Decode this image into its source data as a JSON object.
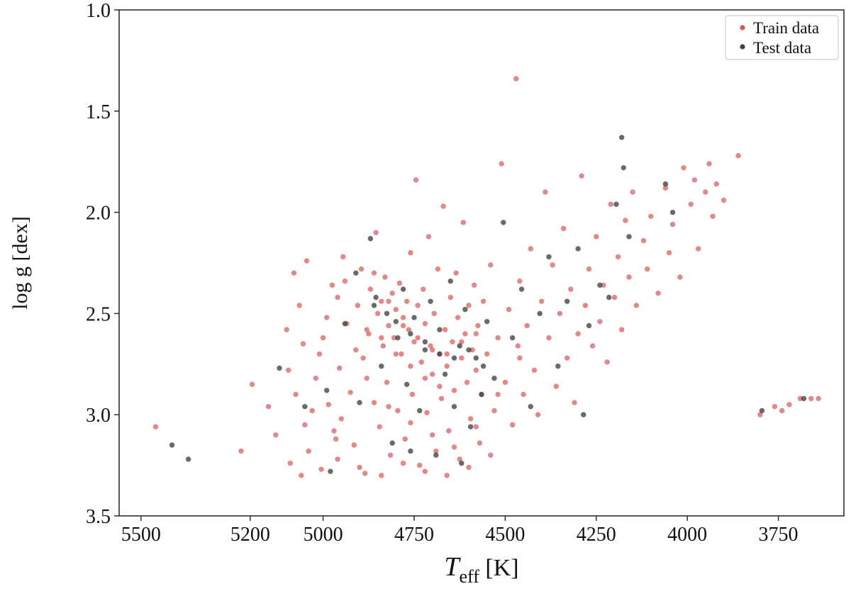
{
  "chart_data": {
    "type": "scatter",
    "title": "",
    "xlabel": {
      "main": "T",
      "sub": "eff",
      "unit": " [K]"
    },
    "ylabel": "log g  [dex]",
    "xlim": [
      5560,
      3570
    ],
    "ylim": [
      1.0,
      3.5
    ],
    "x_inverted": true,
    "y_inverted": true,
    "x_ticks": [
      5500,
      5200,
      5000,
      4750,
      4500,
      4250,
      4000,
      3750
    ],
    "x_tick_labels": [
      "5500",
      "5200",
      "5000",
      "4750",
      "4500",
      "4250",
      "4000",
      "3750"
    ],
    "y_ticks": [
      1.0,
      1.5,
      2.0,
      2.5,
      3.0,
      3.5
    ],
    "y_tick_labels": [
      "1.0",
      "1.5",
      "2.0",
      "2.5",
      "3.0",
      "3.5"
    ],
    "grid": false,
    "legend": {
      "position": "top-right",
      "entries": [
        {
          "label": "Train data",
          "color": "#d9595a"
        },
        {
          "label": "Test data",
          "color": "#404040"
        }
      ]
    },
    "series": [
      {
        "name": "Train data",
        "color": "#d9595a",
        "points": [
          [
            5460,
            3.06
          ],
          [
            5225,
            3.18
          ],
          [
            5195,
            2.85
          ],
          [
            5150,
            2.96
          ],
          [
            5130,
            3.1
          ],
          [
            5100,
            2.58
          ],
          [
            5095,
            2.78
          ],
          [
            5090,
            3.24
          ],
          [
            5080,
            2.3
          ],
          [
            5075,
            2.9
          ],
          [
            5065,
            2.46
          ],
          [
            5060,
            3.3
          ],
          [
            5055,
            2.65
          ],
          [
            5050,
            3.05
          ],
          [
            5045,
            2.24
          ],
          [
            5040,
            3.18
          ],
          [
            5020,
            2.82
          ],
          [
            5010,
            2.7
          ],
          [
            5005,
            3.27
          ],
          [
            4990,
            2.52
          ],
          [
            4985,
            2.95
          ],
          [
            4975,
            2.36
          ],
          [
            4965,
            3.12
          ],
          [
            4960,
            2.42
          ],
          [
            4955,
            2.77
          ],
          [
            4950,
            3.02
          ],
          [
            4945,
            2.22
          ],
          [
            4935,
            2.55
          ],
          [
            4925,
            2.89
          ],
          [
            4915,
            3.15
          ],
          [
            4905,
            2.46
          ],
          [
            4895,
            2.28
          ],
          [
            4890,
            2.72
          ],
          [
            4885,
            3.29
          ],
          [
            4875,
            2.6
          ],
          [
            4870,
            2.38
          ],
          [
            4860,
            2.94
          ],
          [
            4855,
            2.1
          ],
          [
            4850,
            2.5
          ],
          [
            4845,
            3.06
          ],
          [
            4840,
            2.44
          ],
          [
            4835,
            2.66
          ],
          [
            4830,
            2.32
          ],
          [
            4825,
            2.84
          ],
          [
            4820,
            2.56
          ],
          [
            4815,
            3.2
          ],
          [
            4810,
            2.4
          ],
          [
            4805,
            2.62
          ],
          [
            4800,
            2.48
          ],
          [
            4795,
            2.98
          ],
          [
            4790,
            2.35
          ],
          [
            4785,
            2.7
          ],
          [
            4780,
            2.52
          ],
          [
            4775,
            3.12
          ],
          [
            4770,
            2.44
          ],
          [
            4765,
            2.58
          ],
          [
            4760,
            2.2
          ],
          [
            4755,
            2.9
          ],
          [
            4750,
            2.64
          ],
          [
            4745,
            1.84
          ],
          [
            4740,
            2.46
          ],
          [
            4735,
            3.25
          ],
          [
            4730,
            2.74
          ],
          [
            4725,
            2.38
          ],
          [
            4720,
            2.55
          ],
          [
            4715,
            2.99
          ],
          [
            4710,
            2.12
          ],
          [
            4705,
            2.66
          ],
          [
            4700,
            2.8
          ],
          [
            4695,
            2.5
          ],
          [
            4690,
            3.18
          ],
          [
            4685,
            2.28
          ],
          [
            4680,
            2.7
          ],
          [
            4675,
            2.92
          ],
          [
            4670,
            1.97
          ],
          [
            4665,
            2.58
          ],
          [
            4660,
            2.76
          ],
          [
            4655,
            3.08
          ],
          [
            4650,
            2.42
          ],
          [
            4645,
            2.64
          ],
          [
            4640,
            2.88
          ],
          [
            4635,
            2.3
          ],
          [
            4630,
            2.52
          ],
          [
            4625,
            3.22
          ],
          [
            4620,
            2.72
          ],
          [
            4615,
            2.05
          ],
          [
            4610,
            2.6
          ],
          [
            4605,
            2.84
          ],
          [
            4600,
            2.46
          ],
          [
            4595,
            3.02
          ],
          [
            4590,
            2.68
          ],
          [
            4585,
            2.36
          ],
          [
            4580,
            2.78
          ],
          [
            4575,
            2.56
          ],
          [
            4570,
            3.14
          ],
          [
            4565,
            2.9
          ],
          [
            4560,
            2.44
          ],
          [
            4550,
            2.7
          ],
          [
            4540,
            2.26
          ],
          [
            4530,
            2.98
          ],
          [
            4520,
            2.62
          ],
          [
            4510,
            1.76
          ],
          [
            4500,
            2.84
          ],
          [
            4490,
            2.48
          ],
          [
            4480,
            3.05
          ],
          [
            4470,
            1.34
          ],
          [
            4465,
            2.66
          ],
          [
            4460,
            2.34
          ],
          [
            4450,
            2.9
          ],
          [
            4440,
            2.56
          ],
          [
            4430,
            2.18
          ],
          [
            4420,
            2.78
          ],
          [
            4410,
            3.0
          ],
          [
            4400,
            2.44
          ],
          [
            4390,
            1.9
          ],
          [
            4380,
            2.62
          ],
          [
            4370,
            2.26
          ],
          [
            4360,
            2.86
          ],
          [
            4350,
            2.5
          ],
          [
            4340,
            2.08
          ],
          [
            4330,
            2.72
          ],
          [
            4320,
            2.38
          ],
          [
            4310,
            2.94
          ],
          [
            4300,
            2.6
          ],
          [
            4290,
            1.82
          ],
          [
            4280,
            2.46
          ],
          [
            4270,
            2.28
          ],
          [
            4260,
            2.66
          ],
          [
            4250,
            2.12
          ],
          [
            4240,
            2.54
          ],
          [
            4230,
            2.36
          ],
          [
            4220,
            2.74
          ],
          [
            4210,
            1.96
          ],
          [
            4200,
            2.42
          ],
          [
            4190,
            2.22
          ],
          [
            4180,
            2.58
          ],
          [
            4170,
            2.04
          ],
          [
            4160,
            2.32
          ],
          [
            4150,
            1.9
          ],
          [
            4140,
            2.46
          ],
          [
            4120,
            2.14
          ],
          [
            4110,
            2.28
          ],
          [
            4100,
            2.02
          ],
          [
            4080,
            2.4
          ],
          [
            4060,
            1.88
          ],
          [
            4050,
            2.2
          ],
          [
            4040,
            2.06
          ],
          [
            4020,
            2.32
          ],
          [
            4010,
            1.78
          ],
          [
            3990,
            1.96
          ],
          [
            3980,
            1.84
          ],
          [
            3970,
            2.18
          ],
          [
            3950,
            1.9
          ],
          [
            3940,
            1.76
          ],
          [
            3930,
            2.02
          ],
          [
            3920,
            1.86
          ],
          [
            3900,
            1.94
          ],
          [
            3860,
            1.72
          ],
          [
            3760,
            2.96
          ],
          [
            3740,
            2.98
          ],
          [
            3720,
            2.95
          ],
          [
            3690,
            2.92
          ],
          [
            3660,
            2.92
          ],
          [
            3640,
            2.92
          ],
          [
            3800,
            3.0
          ],
          [
            4860,
            2.3
          ],
          [
            4820,
            2.44
          ],
          [
            4780,
            2.56
          ],
          [
            4740,
            2.62
          ],
          [
            4700,
            2.68
          ],
          [
            4660,
            2.7
          ],
          [
            4620,
            2.64
          ],
          [
            4580,
            2.6
          ],
          [
            4880,
            2.58
          ],
          [
            4840,
            2.62
          ],
          [
            4800,
            2.7
          ],
          [
            4760,
            2.76
          ],
          [
            4720,
            2.82
          ],
          [
            4680,
            2.86
          ],
          [
            4960,
            3.22
          ],
          [
            4900,
            3.26
          ],
          [
            4840,
            3.3
          ],
          [
            4780,
            3.24
          ],
          [
            4720,
            3.28
          ],
          [
            4660,
            3.3
          ],
          [
            4600,
            3.26
          ],
          [
            4540,
            3.2
          ],
          [
            5000,
            2.62
          ],
          [
            4940,
            2.34
          ],
          [
            4880,
            2.82
          ],
          [
            4820,
            2.96
          ],
          [
            4760,
            3.04
          ],
          [
            4700,
            3.1
          ],
          [
            4640,
            3.16
          ],
          [
            4580,
            3.06
          ],
          [
            4520,
            2.9
          ],
          [
            4460,
            2.72
          ],
          [
            5030,
            2.98
          ],
          [
            4970,
            3.08
          ],
          [
            4910,
            2.68
          ]
        ]
      },
      {
        "name": "Test data",
        "color": "#404040",
        "points": [
          [
            5415,
            3.15
          ],
          [
            5370,
            3.22
          ],
          [
            5120,
            2.77
          ],
          [
            5050,
            2.96
          ],
          [
            4990,
            2.88
          ],
          [
            4940,
            2.55
          ],
          [
            4910,
            2.3
          ],
          [
            4870,
            2.13
          ],
          [
            4855,
            2.42
          ],
          [
            4840,
            2.76
          ],
          [
            4825,
            2.5
          ],
          [
            4810,
            3.14
          ],
          [
            4795,
            2.62
          ],
          [
            4780,
            2.38
          ],
          [
            4770,
            2.85
          ],
          [
            4750,
            2.52
          ],
          [
            4735,
            2.98
          ],
          [
            4720,
            2.68
          ],
          [
            4705,
            2.44
          ],
          [
            4690,
            3.2
          ],
          [
            4680,
            2.58
          ],
          [
            4665,
            2.8
          ],
          [
            4650,
            2.34
          ],
          [
            4640,
            2.96
          ],
          [
            4625,
            2.66
          ],
          [
            4610,
            2.48
          ],
          [
            4595,
            3.06
          ],
          [
            4580,
            2.72
          ],
          [
            4565,
            2.9
          ],
          [
            4550,
            2.54
          ],
          [
            4530,
            2.82
          ],
          [
            4505,
            2.05
          ],
          [
            4480,
            2.62
          ],
          [
            4455,
            2.38
          ],
          [
            4430,
            2.96
          ],
          [
            4405,
            2.5
          ],
          [
            4380,
            2.22
          ],
          [
            4355,
            2.76
          ],
          [
            4330,
            2.44
          ],
          [
            4300,
            2.18
          ],
          [
            4285,
            3.0
          ],
          [
            4270,
            2.56
          ],
          [
            4240,
            2.36
          ],
          [
            4215,
            2.42
          ],
          [
            4195,
            1.96
          ],
          [
            4180,
            1.63
          ],
          [
            4175,
            1.78
          ],
          [
            4160,
            2.12
          ],
          [
            4060,
            1.86
          ],
          [
            4040,
            2.0
          ],
          [
            3795,
            2.98
          ],
          [
            3680,
            2.92
          ],
          [
            4860,
            2.46
          ],
          [
            4800,
            2.54
          ],
          [
            4760,
            2.6
          ],
          [
            4720,
            2.64
          ],
          [
            4680,
            2.7
          ],
          [
            4640,
            2.72
          ],
          [
            4600,
            2.68
          ],
          [
            4560,
            2.76
          ],
          [
            4900,
            2.94
          ],
          [
            4760,
            3.18
          ],
          [
            4620,
            3.24
          ],
          [
            4980,
            3.28
          ]
        ]
      }
    ]
  }
}
